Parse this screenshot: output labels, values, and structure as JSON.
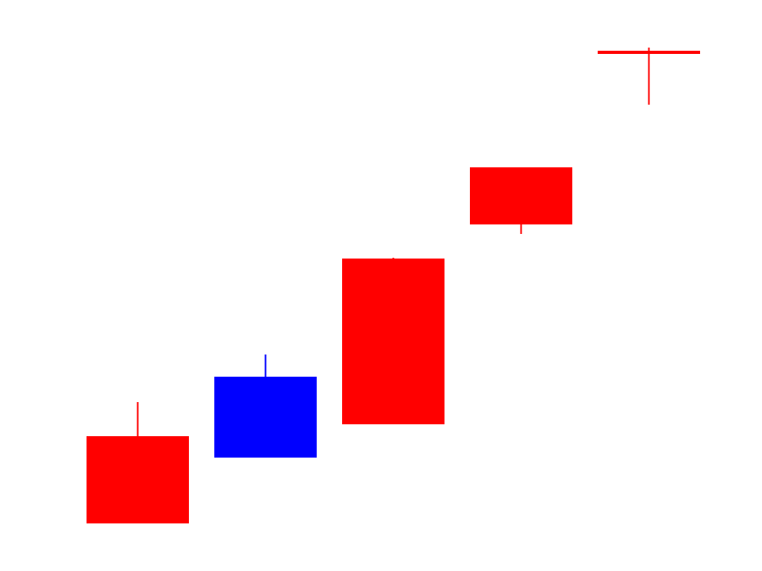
{
  "chart_data": {
    "type": "candlestick",
    "title": "",
    "xlabel": "",
    "ylabel": "",
    "ylim": [
      0,
      720
    ],
    "axes_visible": false,
    "grid": false,
    "legend": "none",
    "colors": {
      "up": "#ff0000",
      "down": "#0000ff"
    },
    "candles": [
      {
        "open": 60,
        "close": 170,
        "high": 213,
        "low": 60
      },
      {
        "open": 245,
        "close": 143,
        "high": 273,
        "low": 143
      },
      {
        "open": 185,
        "close": 394,
        "high": 395,
        "low": 185
      },
      {
        "open": 437,
        "close": 509,
        "high": 509,
        "low": 425
      },
      {
        "open": 654,
        "close": 654,
        "high": 660,
        "low": 588
      }
    ]
  }
}
